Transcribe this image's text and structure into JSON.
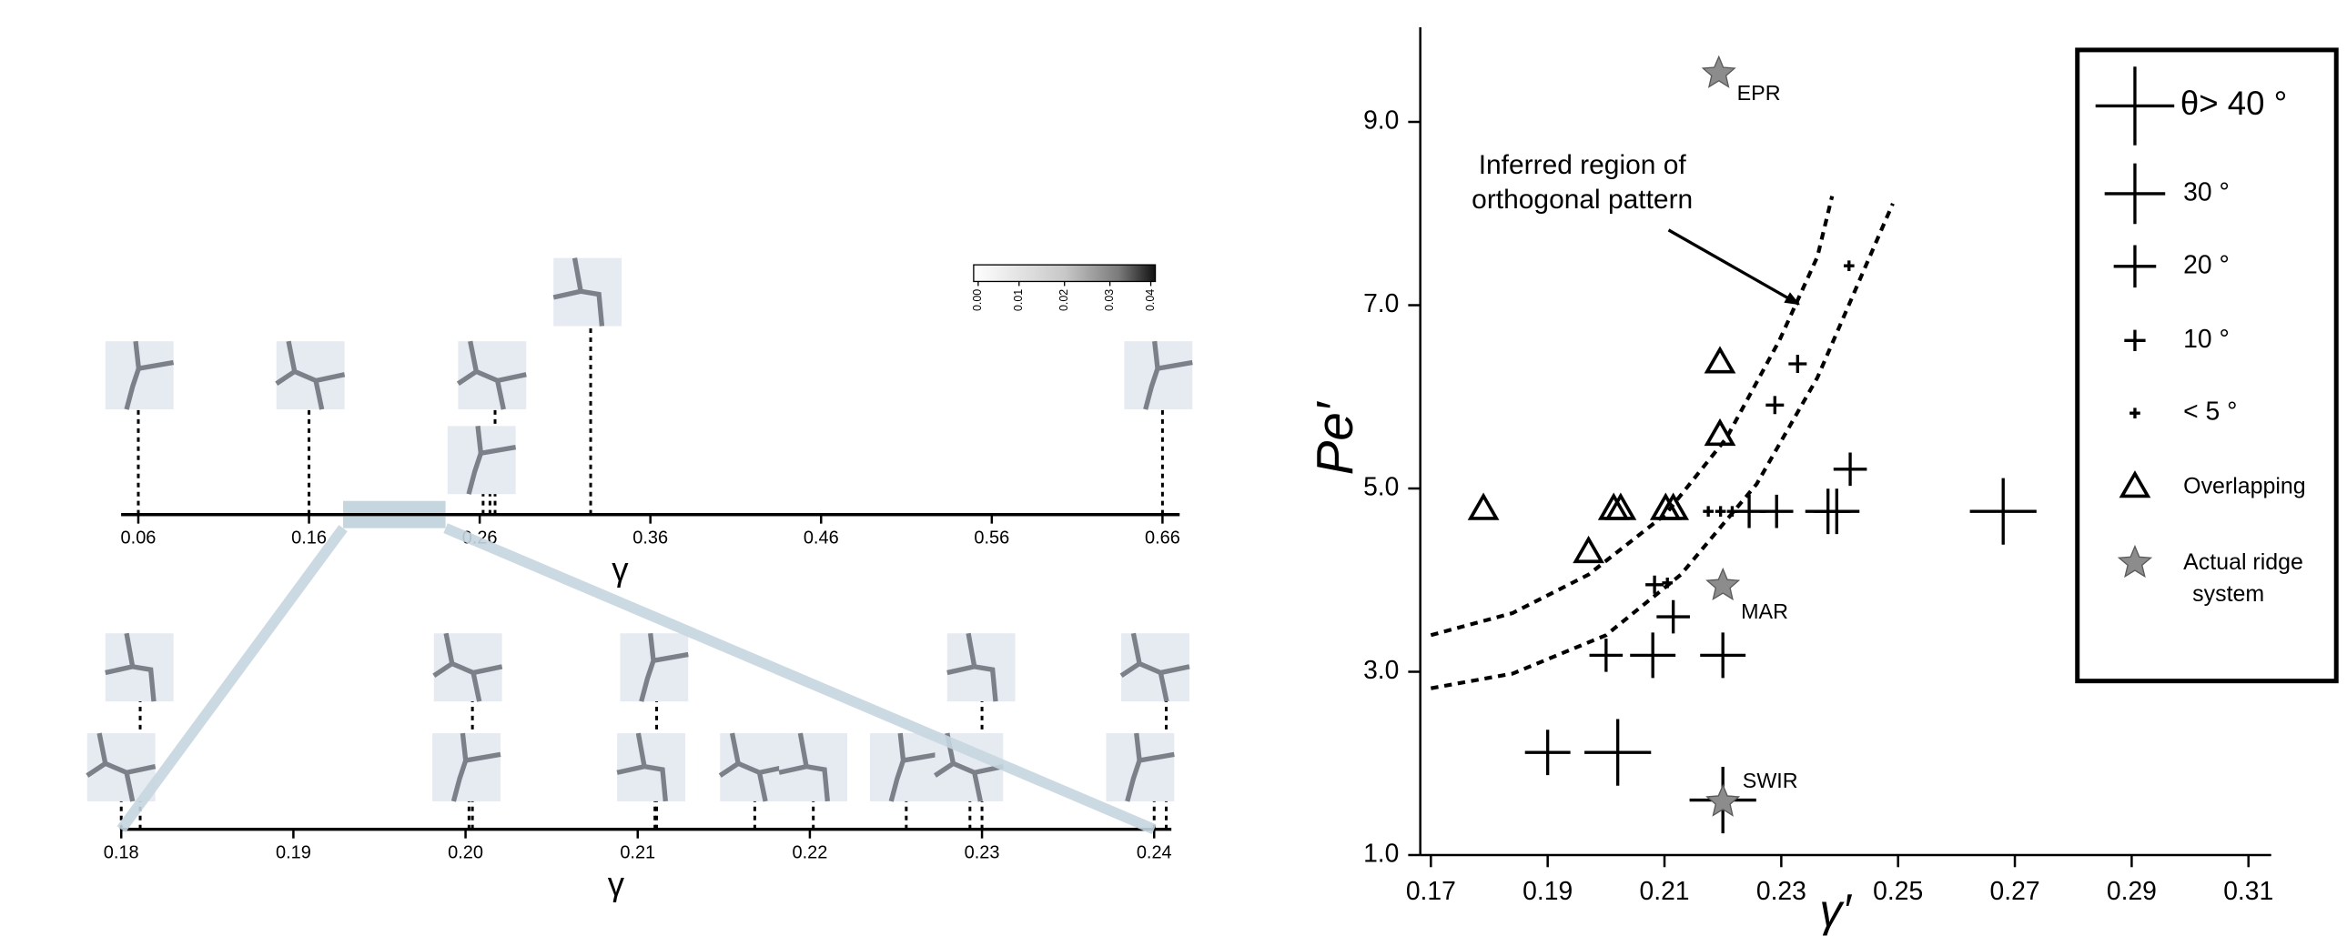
{
  "chart_data": [
    {
      "type": "timeline",
      "xlim": [
        0.05,
        0.67
      ],
      "xticks": [
        0.06,
        0.16,
        0.26,
        0.36,
        0.46,
        0.56,
        0.66
      ],
      "xlabel": "γ",
      "x": [
        0.06,
        0.16,
        0.262,
        0.266,
        0.269,
        0.325,
        0.66
      ],
      "zoom": [
        0.18,
        0.24
      ],
      "zoom_color": "#c5d6df",
      "colorbar": {
        "lim": [
          0,
          0.04
        ],
        "ticks": [
          {
            "value": 0,
            "label": "0.00"
          },
          0.01,
          0.02,
          0.03,
          0.04
        ]
      }
    },
    {
      "type": "timeline",
      "xlim": [
        0.18,
        0.241
      ],
      "xticks": [
        {
          "value": 0.18,
          "label": "0.18"
        },
        0.19,
        {
          "value": 0.2,
          "label": "0.20"
        },
        0.21,
        0.22,
        0.23,
        0.24
      ],
      "xlabel": "γ",
      "x": [
        0.18,
        0.1811,
        0.2002,
        0.2004,
        0.211,
        0.2111,
        0.2168,
        0.2202,
        0.2256,
        0.2293,
        0.23,
        0.24,
        0.2407
      ]
    },
    {
      "type": "scatter",
      "xlabel": "γ′",
      "ylabel": "Pe′",
      "xlim": [
        0.17,
        0.31
      ],
      "ylim": [
        1.0,
        10.0
      ],
      "xticks": [
        0.17,
        0.19,
        0.21,
        0.23,
        0.25,
        0.27,
        0.29,
        0.31
      ],
      "yticks": [
        {
          "value": 1,
          "label": "1.0"
        },
        {
          "value": 3,
          "label": "3.0"
        },
        {
          "value": 5,
          "label": "5.0"
        },
        {
          "value": 7,
          "label": "7.0"
        },
        {
          "value": 9,
          "label": "9.0"
        }
      ],
      "series": [
        {
          "name": "θ> 40 °",
          "marker": "cross",
          "color": "#000000",
          "x": [
            0.202,
            0.268,
            0.22
          ],
          "y": [
            2.12,
            4.75,
            1.6
          ]
        },
        {
          "name": "30 °",
          "marker": "cross",
          "color": "#000000",
          "x": [
            0.19,
            0.208,
            0.22,
            0.238,
            0.2395
          ],
          "y": [
            2.12,
            3.18,
            3.18,
            4.75,
            4.75
          ]
        },
        {
          "name": "20 °",
          "marker": "cross",
          "color": "#000000",
          "x": [
            0.2,
            0.2115,
            0.2418,
            0.2245,
            0.2292
          ],
          "y": [
            3.18,
            3.6,
            5.21,
            4.75,
            4.75
          ]
        },
        {
          "name": "10 °",
          "marker": "cross",
          "color": "#000000",
          "x": [
            0.2083,
            0.2289,
            0.2328
          ],
          "y": [
            3.95,
            5.91,
            6.36
          ]
        },
        {
          "name": "< 5 °",
          "marker": "cross",
          "color": "#000000",
          "x": [
            0.2175,
            0.2196,
            0.2216,
            0.2416,
            0.2105
          ],
          "y": [
            4.75,
            4.75,
            4.75,
            7.43,
            3.97
          ]
        },
        {
          "name": "Overlapping",
          "marker": "triangle",
          "color": "#000000",
          "x": [
            0.179,
            0.197,
            0.2013,
            0.2025,
            0.2102,
            0.2115,
            0.2195,
            0.2195
          ],
          "y": [
            4.77,
            4.3,
            4.77,
            4.77,
            4.77,
            4.77,
            5.58,
            6.37
          ]
        },
        {
          "name": "Actual ridge system",
          "marker": "star",
          "color": "#8c8c8c",
          "x": [
            0.2193,
            0.22,
            0.22
          ],
          "y": [
            9.53,
            3.94,
            1.58
          ],
          "labels": [
            "EPR",
            "MAR",
            "SWIR"
          ]
        }
      ],
      "curves": [
        {
          "x": [
            0.17,
            0.184,
            0.197,
            0.2102,
            0.2206,
            0.2297,
            0.2362,
            0.2387
          ],
          "y": [
            3.4,
            3.64,
            4.06,
            4.72,
            5.55,
            6.62,
            7.53,
            8.19
          ]
        },
        {
          "x": [
            0.17,
            0.184,
            0.2,
            0.2128,
            0.2258,
            0.2362,
            0.244,
            0.2491
          ],
          "y": [
            2.82,
            2.98,
            3.4,
            4.06,
            5.05,
            6.21,
            7.36,
            8.11
          ]
        }
      ],
      "annotation": [
        "Inferred region of",
        "orthogonal pattern"
      ]
    }
  ]
}
